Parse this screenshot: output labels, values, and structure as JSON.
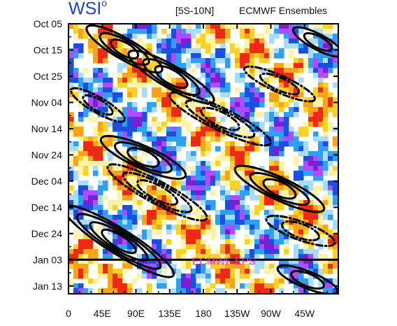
{
  "header": {
    "logo_text": "WSI",
    "logo_mark": "o",
    "region": "[5S-10N]",
    "source": "ECMWF Ensembles"
  },
  "chart_data": {
    "type": "heatmap",
    "title": "",
    "xlabel": "",
    "ylabel": "",
    "x_ticks": [
      "0",
      "45E",
      "90E",
      "135E",
      "180",
      "135W",
      "90W",
      "45W"
    ],
    "x_tick_degrees_east": [
      0,
      45,
      90,
      135,
      180,
      225,
      270,
      315
    ],
    "xlim_degrees_east": [
      0,
      360
    ],
    "y_ticks": [
      "Oct 05",
      "Oct 15",
      "Oct 25",
      "Nov 04",
      "Nov 14",
      "Nov 24",
      "Dec 04",
      "Dec 14",
      "Dec 24",
      "Jan 03",
      "Jan 13"
    ],
    "ylim_days_after_oct05": [
      0,
      103
    ],
    "forecast_start_label": "Jan 03",
    "forecast_label": "ECMWF EPS",
    "grid": false,
    "colors": {
      "deep_purple": "#7a1fd2",
      "purple": "#b24bff",
      "blue": "#1c4fe0",
      "light_blue": "#2f9ff2",
      "pale_blue": "#a9dcf8",
      "pale_yellow": "#fff3a8",
      "yellow": "#f9d226",
      "orange": "#f7a31c",
      "red": "#ee2a16",
      "contour": "#000000",
      "forecast_label": "#ee33dd",
      "logo": "#1f3fd6"
    }
  }
}
